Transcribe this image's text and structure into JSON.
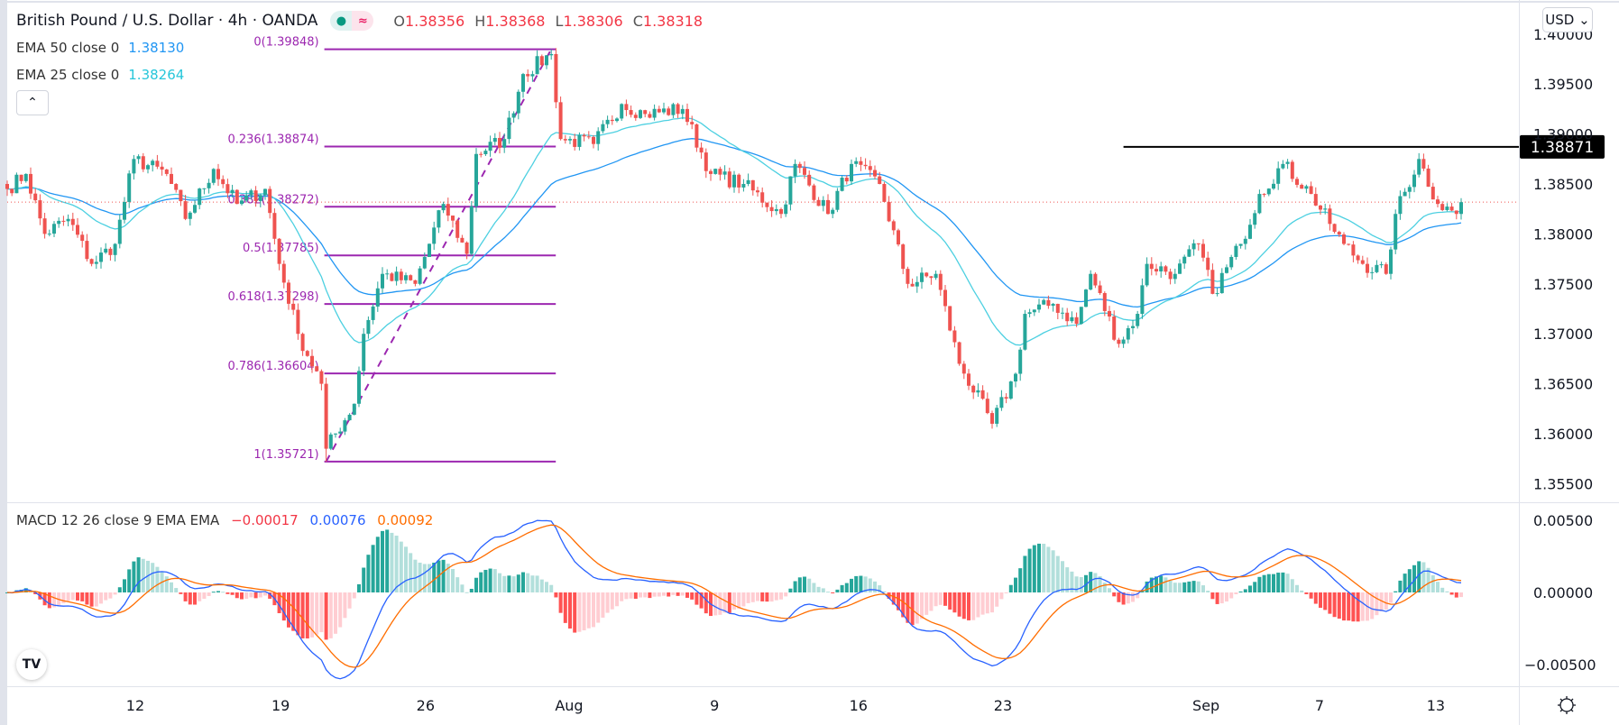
{
  "header": {
    "symbol_title": "British Pound / U.S. Dollar · 4h · OANDA",
    "ohlc": {
      "o_label": "O",
      "o": "1.38356",
      "h_label": "H",
      "h": "1.38368",
      "l_label": "L",
      "l": "1.38306",
      "c_label": "C",
      "c": "1.38318"
    },
    "ema50": {
      "label": "EMA 50 close 0",
      "value": "1.38130"
    },
    "ema25": {
      "label": "EMA 25 close 0",
      "value": "1.38264"
    },
    "collapse_icon": "chevron-up-icon",
    "currency_button": "USD ⌄"
  },
  "macd_legend": {
    "label": "MACD 12 26 close 9 EMA EMA",
    "hist": "−0.00017",
    "macd": "0.00076",
    "signal": "0.00092"
  },
  "colors": {
    "up": "#26a69a",
    "down": "#ef5350",
    "ema50": "#2196f3",
    "ema25": "#4dd0e1",
    "fib": "#9c27b0",
    "macd": "#2962ff",
    "signal": "#ff6d00",
    "hist_up_strong": "#26a69a",
    "hist_up_weak": "#b2dfdb",
    "hist_dn_strong": "#ff5252",
    "hist_dn_weak": "#ffcdd2"
  },
  "chart_data": {
    "type": "candlestick",
    "title": "British Pound / U.S. Dollar · 4h · OANDA",
    "price_axis": {
      "range": [
        1.3515,
        1.4035
      ],
      "ticks": [
        "1.40000",
        "1.39500",
        "1.39000",
        "1.38500",
        "1.38000",
        "1.37500",
        "1.37000",
        "1.36500",
        "1.36000",
        "1.35500"
      ]
    },
    "macd_axis": {
      "range": [
        -0.0062,
        0.0072
      ],
      "ticks": [
        "0.00500",
        "0.00000",
        "-0.00500"
      ]
    },
    "x_ticks": [
      {
        "label": "12",
        "bar": 27.3
      },
      {
        "label": "19",
        "bar": 58.3
      },
      {
        "label": "26",
        "bar": 89.2
      },
      {
        "label": "Aug",
        "bar": 119.8
      },
      {
        "label": "9",
        "bar": 150.8
      },
      {
        "label": "16",
        "bar": 181.5
      },
      {
        "label": "23",
        "bar": 212.3
      },
      {
        "label": "Sep",
        "bar": 255.6
      },
      {
        "label": "7",
        "bar": 279.8
      },
      {
        "label": "13",
        "bar": 304.6
      }
    ],
    "bar_count": 311,
    "close_waypoints": [
      [
        0,
        1.3845
      ],
      [
        4,
        1.386
      ],
      [
        8,
        1.38
      ],
      [
        13,
        1.3815
      ],
      [
        18,
        1.377
      ],
      [
        23,
        1.379
      ],
      [
        27,
        1.3875
      ],
      [
        34,
        1.386
      ],
      [
        38,
        1.3815
      ],
      [
        44,
        1.3865
      ],
      [
        49,
        1.383
      ],
      [
        55,
        1.3845
      ],
      [
        58,
        1.377
      ],
      [
        62,
        1.37
      ],
      [
        67,
        1.365
      ],
      [
        68,
        1.3585
      ],
      [
        74,
        1.363
      ],
      [
        76,
        1.37
      ],
      [
        80,
        1.376
      ],
      [
        87,
        1.375
      ],
      [
        93,
        1.383
      ],
      [
        98,
        1.378
      ],
      [
        100,
        1.388
      ],
      [
        106,
        1.3895
      ],
      [
        110,
        1.396
      ],
      [
        116,
        1.398
      ],
      [
        118,
        1.3895
      ],
      [
        125,
        1.389
      ],
      [
        131,
        1.393
      ],
      [
        136,
        1.392
      ],
      [
        144,
        1.3925
      ],
      [
        150,
        1.386
      ],
      [
        157,
        1.385
      ],
      [
        165,
        1.382
      ],
      [
        168,
        1.387
      ],
      [
        175,
        1.382
      ],
      [
        180,
        1.387
      ],
      [
        186,
        1.385
      ],
      [
        192,
        1.375
      ],
      [
        198,
        1.376
      ],
      [
        203,
        1.367
      ],
      [
        210,
        1.361
      ],
      [
        215,
        1.366
      ],
      [
        217,
        1.372
      ],
      [
        223,
        1.373
      ],
      [
        228,
        1.371
      ],
      [
        231,
        1.376
      ],
      [
        237,
        1.369
      ],
      [
        241,
        1.372
      ],
      [
        243,
        1.377
      ],
      [
        249,
        1.376
      ],
      [
        254,
        1.379
      ],
      [
        257,
        1.374
      ],
      [
        263,
        1.379
      ],
      [
        267,
        1.384
      ],
      [
        272,
        1.387
      ],
      [
        278,
        1.384
      ],
      [
        282,
        1.381
      ],
      [
        285,
        1.379
      ],
      [
        289,
        1.377
      ],
      [
        294,
        1.376
      ],
      [
        296,
        1.382
      ],
      [
        301,
        1.3875
      ],
      [
        305,
        1.383
      ],
      [
        309,
        1.382
      ],
      [
        310,
        1.38318
      ]
    ],
    "swing_low": {
      "bar": 68,
      "price": 1.35721
    },
    "swing_high": {
      "bar": 116,
      "price": 1.39848
    },
    "fib_levels": [
      {
        "label": "0(1.39848)",
        "price": 1.39848
      },
      {
        "label": "0.236(1.38874)",
        "price": 1.38874
      },
      {
        "label": "0.382(1.38272)",
        "price": 1.38272
      },
      {
        "label": "0.5(1.37785)",
        "price": 1.37785
      },
      {
        "label": "0.618(1.37298)",
        "price": 1.37298
      },
      {
        "label": "0.786(1.36604)",
        "price": 1.36604
      },
      {
        "label": "1(1.35721)",
        "price": 1.35721
      }
    ],
    "horizontal_line": {
      "price": 1.38871,
      "label": "1.38871",
      "start_bar": 238
    },
    "last_price": 1.38318,
    "ema_periods": [
      50,
      25
    ],
    "macd_params": [
      12,
      26,
      9
    ]
  }
}
